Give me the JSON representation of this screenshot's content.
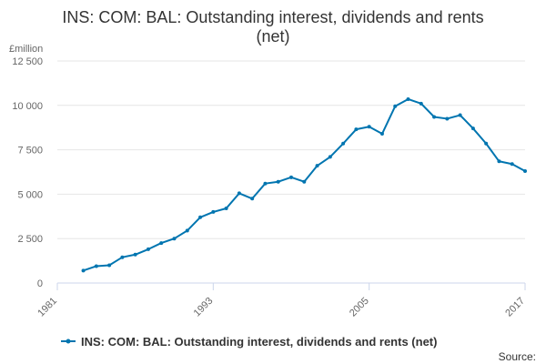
{
  "chart_data": {
    "type": "line",
    "title_line1": "INS: COM: BAL: Outstanding interest, dividends and rents",
    "title_line2": "(net)",
    "y_unit": "£million",
    "xlim": [
      1981,
      2017
    ],
    "ylim": [
      0,
      12500
    ],
    "x_ticks": [
      1981,
      1993,
      2005,
      2017
    ],
    "y_ticks": [
      0,
      2500,
      5000,
      7500,
      10000,
      12500
    ],
    "y_tick_labels": [
      "0",
      "2 500",
      "5 000",
      "7 500",
      "10 000",
      "12 500"
    ],
    "grid": true,
    "legend_position": "bottom",
    "series": [
      {
        "name": "INS: COM: BAL: Outstanding interest, dividends and rents (net)",
        "color": "#0075b0",
        "x": [
          1983,
          1984,
          1985,
          1986,
          1987,
          1988,
          1989,
          1990,
          1991,
          1992,
          1993,
          1994,
          1995,
          1996,
          1997,
          1998,
          1999,
          2000,
          2001,
          2002,
          2003,
          2004,
          2005,
          2006,
          2007,
          2008,
          2009,
          2010,
          2011,
          2012,
          2013,
          2014,
          2015,
          2016,
          2017
        ],
        "y": [
          700,
          950,
          1000,
          1450,
          1600,
          1900,
          2250,
          2500,
          2950,
          3700,
          4000,
          4200,
          5050,
          4750,
          5600,
          5700,
          5950,
          5700,
          6600,
          7100,
          7850,
          8650,
          8800,
          8400,
          9950,
          10350,
          10100,
          9350,
          9250,
          9450,
          8700,
          7850,
          6850,
          6700,
          6300
        ]
      }
    ]
  },
  "footer": {
    "source_label": "Source:"
  }
}
